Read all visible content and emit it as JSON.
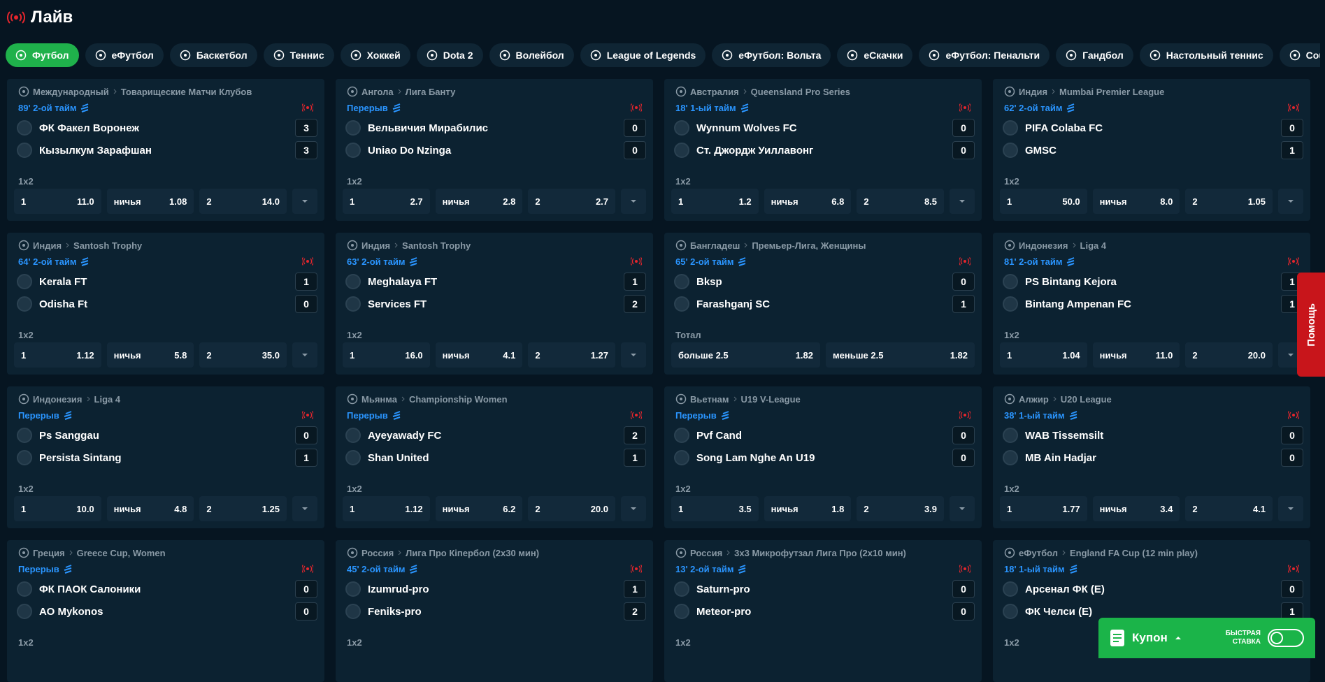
{
  "header": {
    "title": "Лайв"
  },
  "tabs": [
    "Футбол",
    "еФутбол",
    "Баскетбол",
    "Теннис",
    "Хоккей",
    "Dota 2",
    "Волейбол",
    "League of Legends",
    "еФутбол: Вольта",
    "еСкачки",
    "еФутбол: Пенальти",
    "Гандбол",
    "Настольный теннис",
    "Counter-Strike"
  ],
  "matches": [
    {
      "country": "Международный",
      "league": "Товарищеские Матчи Клубов",
      "status": "89' 2-ой тайм",
      "teams": [
        {
          "name": "ФК Факел Воронеж",
          "score": 3
        },
        {
          "name": "Кызылкум Зарафшан",
          "score": 3
        }
      ],
      "market": "1x2",
      "odds": [
        {
          "label": "1",
          "value": "11.0"
        },
        {
          "label": "ничья",
          "value": "1.08"
        },
        {
          "label": "2",
          "value": "14.0"
        }
      ]
    },
    {
      "country": "Ангола",
      "league": "Лига Банту",
      "status": "Перерыв",
      "teams": [
        {
          "name": "Вельвичия Мирабилис",
          "score": 0
        },
        {
          "name": "Uniao Do Nzinga",
          "score": 0
        }
      ],
      "market": "1x2",
      "odds": [
        {
          "label": "1",
          "value": "2.7"
        },
        {
          "label": "ничья",
          "value": "2.8"
        },
        {
          "label": "2",
          "value": "2.7"
        }
      ]
    },
    {
      "country": "Австралия",
      "league": "Queensland Pro Series",
      "status": "18' 1-ый тайм",
      "teams": [
        {
          "name": "Wynnum Wolves FC",
          "score": 0
        },
        {
          "name": "Ст. Джордж Уиллавонг",
          "score": 0
        }
      ],
      "market": "1x2",
      "odds": [
        {
          "label": "1",
          "value": "1.2"
        },
        {
          "label": "ничья",
          "value": "6.8"
        },
        {
          "label": "2",
          "value": "8.5"
        }
      ]
    },
    {
      "country": "Индия",
      "league": "Mumbai Premier League",
      "status": "62' 2-ой тайм",
      "teams": [
        {
          "name": "PIFA Colaba FC",
          "score": 0
        },
        {
          "name": "GMSC",
          "score": 1
        }
      ],
      "market": "1x2",
      "odds": [
        {
          "label": "1",
          "value": "50.0"
        },
        {
          "label": "ничья",
          "value": "8.0"
        },
        {
          "label": "2",
          "value": "1.05"
        }
      ]
    },
    {
      "country": "Индия",
      "league": "Santosh Trophy",
      "status": "64' 2-ой тайм",
      "teams": [
        {
          "name": "Kerala FT",
          "score": 1
        },
        {
          "name": "Odisha Ft",
          "score": 0
        }
      ],
      "market": "1x2",
      "odds": [
        {
          "label": "1",
          "value": "1.12"
        },
        {
          "label": "ничья",
          "value": "5.8"
        },
        {
          "label": "2",
          "value": "35.0"
        }
      ]
    },
    {
      "country": "Индия",
      "league": "Santosh Trophy",
      "status": "63' 2-ой тайм",
      "teams": [
        {
          "name": "Meghalaya FT",
          "score": 1
        },
        {
          "name": "Services FT",
          "score": 2
        }
      ],
      "market": "1x2",
      "odds": [
        {
          "label": "1",
          "value": "16.0"
        },
        {
          "label": "ничья",
          "value": "4.1"
        },
        {
          "label": "2",
          "value": "1.27"
        }
      ]
    },
    {
      "country": "Бангладеш",
      "league": "Премьер-Лига, Женщины",
      "status": "65' 2-ой тайм",
      "teams": [
        {
          "name": "Bksp",
          "score": 0
        },
        {
          "name": "Farashganj SC",
          "score": 1
        }
      ],
      "market": "Тотал",
      "odds": [
        {
          "label": "больше 2.5",
          "value": "1.82"
        },
        {
          "label": "меньше 2.5",
          "value": "1.82"
        }
      ]
    },
    {
      "country": "Индонезия",
      "league": "Liga 4",
      "status": "81' 2-ой тайм",
      "teams": [
        {
          "name": "PS Bintang Kejora",
          "score": 1
        },
        {
          "name": "Bintang Ampenan FC",
          "score": 1
        }
      ],
      "market": "1x2",
      "odds": [
        {
          "label": "1",
          "value": "1.04"
        },
        {
          "label": "ничья",
          "value": "11.0"
        },
        {
          "label": "2",
          "value": "20.0"
        }
      ]
    },
    {
      "country": "Индонезия",
      "league": "Liga 4",
      "status": "Перерыв",
      "teams": [
        {
          "name": "Ps Sanggau",
          "score": 0
        },
        {
          "name": "Persista Sintang",
          "score": 1
        }
      ],
      "market": "1x2",
      "odds": [
        {
          "label": "1",
          "value": "10.0"
        },
        {
          "label": "ничья",
          "value": "4.8"
        },
        {
          "label": "2",
          "value": "1.25"
        }
      ]
    },
    {
      "country": "Мьянма",
      "league": "Championship Women",
      "status": "Перерыв",
      "teams": [
        {
          "name": "Ayeyawady FC",
          "score": 2
        },
        {
          "name": "Shan United",
          "score": 1
        }
      ],
      "market": "1x2",
      "odds": [
        {
          "label": "1",
          "value": "1.12"
        },
        {
          "label": "ничья",
          "value": "6.2"
        },
        {
          "label": "2",
          "value": "20.0"
        }
      ]
    },
    {
      "country": "Вьетнам",
      "league": "U19 V-League",
      "status": "Перерыв",
      "teams": [
        {
          "name": "Pvf Cand",
          "score": 0
        },
        {
          "name": "Song Lam Nghe An U19",
          "score": 0
        }
      ],
      "market": "1x2",
      "odds": [
        {
          "label": "1",
          "value": "3.5"
        },
        {
          "label": "ничья",
          "value": "1.8"
        },
        {
          "label": "2",
          "value": "3.9"
        }
      ]
    },
    {
      "country": "Алжир",
      "league": "U20 League",
      "status": "38' 1-ый тайм",
      "teams": [
        {
          "name": "WAB Tissemsilt",
          "score": 0
        },
        {
          "name": "MB Ain Hadjar",
          "score": 0
        }
      ],
      "market": "1x2",
      "odds": [
        {
          "label": "1",
          "value": "1.77"
        },
        {
          "label": "ничья",
          "value": "3.4"
        },
        {
          "label": "2",
          "value": "4.1"
        }
      ]
    },
    {
      "country": "Греция",
      "league": "Greece Cup, Women",
      "status": "Перерыв",
      "teams": [
        {
          "name": "ФК ПАОК Салоники",
          "score": 0
        },
        {
          "name": "АО Mykonos",
          "score": 0
        }
      ],
      "market": "1x2",
      "odds": []
    },
    {
      "country": "Россия",
      "league": "Лига Про Кіпербол (2х30 мин)",
      "status": "45' 2-ой тайм",
      "teams": [
        {
          "name": "Izumrud-pro",
          "score": 1
        },
        {
          "name": "Feniks-pro",
          "score": 2
        }
      ],
      "market": "1x2",
      "odds": []
    },
    {
      "country": "Россия",
      "league": "3х3 Микрофутзал Лига Про (2х10 мин)",
      "status": "13' 2-ой тайм",
      "teams": [
        {
          "name": "Saturn-pro",
          "score": 0
        },
        {
          "name": "Meteor-pro",
          "score": 0
        }
      ],
      "market": "1x2",
      "odds": []
    },
    {
      "country": "еФутбол",
      "league": "England FA Cup (12 min play)",
      "status": "18' 1-ый тайм",
      "teams": [
        {
          "name": "Арсенал ФК (E)",
          "score": 0
        },
        {
          "name": "ФК Челси (E)",
          "score": 1
        }
      ],
      "market": "1x2",
      "odds": []
    }
  ],
  "help": "Помощь",
  "coupon": {
    "label": "Купон",
    "quick_bet": "Быстрая ставка"
  }
}
